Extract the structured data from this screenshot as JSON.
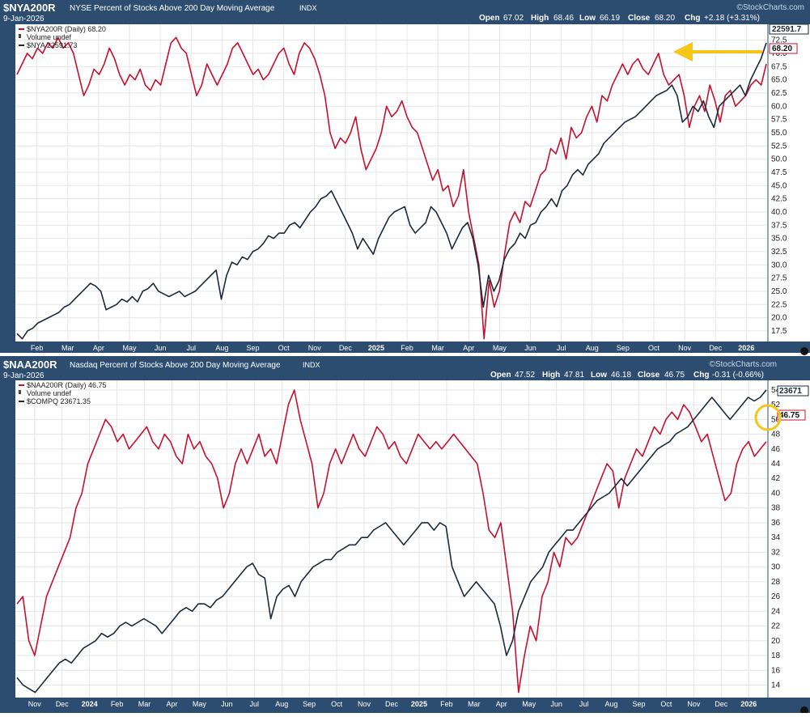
{
  "panels": [
    {
      "symbol": "$NYA200R",
      "description": "NYSE Percent of Stocks Above 200 Day Moving Average",
      "index_tag": "INDX",
      "watermark": "©StockCharts.com",
      "date": "9-Jan-2026",
      "ohlc": {
        "open_label": "Open",
        "open": "67.02",
        "high_label": "High",
        "high": "68.46",
        "low_label": "Low",
        "low": "66.19",
        "close_label": "Close",
        "close": "68.20",
        "chg_label": "Chg",
        "chg": "+2.18 (+3.31%)"
      },
      "legend": [
        {
          "text": "$NYA200R (Daily) 68.20",
          "color": "#c8102e"
        },
        {
          "text": "Volume undef",
          "color": "#444444"
        },
        {
          "text": "$NYA 22591.73",
          "color": "#1c2a3a"
        }
      ],
      "last_badges": {
        "primary": "68.20",
        "secondary": "22591.7"
      },
      "chart_data": {
        "type": "line",
        "ylim": [
          15.5,
          75.5
        ],
        "yticks": [
          "17.5",
          "20.0",
          "22.5",
          "25.0",
          "27.5",
          "30.0",
          "32.5",
          "35.0",
          "37.5",
          "40.0",
          "42.5",
          "45.0",
          "47.5",
          "50.0",
          "52.5",
          "55.0",
          "57.5",
          "60.0",
          "62.5",
          "65.0",
          "67.5",
          "70.0",
          "72.5"
        ],
        "xticks": [
          "Feb",
          "Mar",
          "Apr",
          "May",
          "Jun",
          "Jul",
          "Aug",
          "Sep",
          "Oct",
          "Nov",
          "Dec",
          "2025",
          "Feb",
          "Mar",
          "Apr",
          "May",
          "Jun",
          "Jul",
          "Aug",
          "Sep",
          "Oct",
          "Nov",
          "Dec",
          "2026"
        ],
        "series": [
          {
            "name": "$NYA200R (Daily) 68.20",
            "color": "#c8102e",
            "values": [
              66,
              68,
              70,
              69,
              71,
              70,
              72,
              71,
              73,
              71,
              72,
              70,
              66,
              62,
              64,
              67,
              66,
              68,
              71,
              69,
              66,
              64,
              66,
              65,
              67,
              64,
              63,
              65,
              64,
              68,
              72,
              73,
              71,
              70,
              66,
              62,
              64,
              68,
              66,
              64,
              66,
              68,
              71,
              72,
              70,
              68,
              66,
              67,
              65,
              66,
              68,
              70,
              71,
              68,
              66,
              70,
              72,
              71,
              69,
              66,
              62,
              55,
              52,
              54,
              53,
              55,
              58,
              52,
              48,
              50,
              52,
              55,
              60,
              58,
              59,
              61,
              58,
              56,
              55,
              52,
              49,
              46,
              48,
              44,
              45,
              41,
              43,
              48,
              40,
              35,
              30,
              16,
              27,
              22,
              25,
              32,
              38,
              40,
              38,
              42,
              41,
              44,
              47,
              48,
              52,
              51,
              54,
              50,
              56,
              54,
              55,
              58,
              60,
              57,
              62,
              61,
              64,
              66,
              68,
              66,
              68,
              69,
              67,
              66,
              68,
              70,
              66,
              64,
              65,
              66,
              62,
              56,
              60,
              62,
              59,
              64,
              61,
              57,
              62,
              63,
              60,
              61,
              62,
              64,
              65,
              64,
              68
            ]
          },
          {
            "name": "$NYA 22591.73",
            "color": "#1c2a3a",
            "values": [
              17,
              16,
              17.5,
              18,
              19,
              19.5,
              20,
              20.5,
              21,
              22,
              22.5,
              23.5,
              24.5,
              25.5,
              26.5,
              26,
              25,
              21.5,
              22,
              22.5,
              23.5,
              23,
              24,
              23,
              25,
              25.5,
              26.5,
              25,
              24.5,
              24,
              24.5,
              25,
              24,
              24.5,
              25,
              26,
              27,
              28,
              29,
              23.5,
              28,
              30.5,
              30,
              31.5,
              31,
              32.5,
              33,
              34,
              35.5,
              35,
              36,
              36,
              37.5,
              38,
              37,
              38.5,
              40,
              41,
              42.5,
              43,
              44,
              42,
              40,
              38,
              36,
              33,
              35,
              33.5,
              32,
              35,
              37,
              39,
              40,
              40.5,
              41,
              37.5,
              36,
              37,
              38,
              41,
              40,
              38,
              36,
              33,
              35,
              37,
              38,
              35,
              30,
              22,
              28,
              25,
              27,
              31,
              33,
              34,
              36,
              35,
              37.5,
              38,
              40,
              41,
              42.5,
              41,
              44,
              45,
              47,
              48,
              47,
              49,
              50,
              51,
              53,
              54,
              55,
              56,
              57,
              57.5,
              58,
              59,
              60,
              61,
              62,
              62.5,
              63,
              64,
              62,
              57,
              58,
              60,
              59,
              61,
              58,
              56,
              60,
              61,
              62,
              63,
              64,
              62,
              65,
              67,
              69,
              72
            ]
          }
        ]
      }
    },
    {
      "symbol": "$NAA200R",
      "description": "Nasdaq Percent of Stocks Above 200 Day Moving Average",
      "index_tag": "INDX",
      "watermark": "©StockCharts.com",
      "date": "9-Jan-2026",
      "ohlc": {
        "open_label": "Open",
        "open": "47.52",
        "high_label": "High",
        "high": "47.81",
        "low_label": "Low",
        "low": "46.18",
        "close_label": "Close",
        "close": "46.75",
        "chg_label": "Chg",
        "chg": "-0.31 (-0.66%)"
      },
      "legend": [
        {
          "text": "$NAA200R (Daily) 46.75",
          "color": "#c8102e"
        },
        {
          "text": "Volume undef",
          "color": "#444444"
        },
        {
          "text": "$COMPQ 23671.35",
          "color": "#1c2a3a"
        }
      ],
      "last_badges": {
        "primary": "46.75",
        "secondary": "23671"
      },
      "chart_data": {
        "type": "line",
        "ylim": [
          12.3,
          55.3
        ],
        "yticks": [
          "14",
          "16",
          "18",
          "20",
          "22",
          "24",
          "26",
          "28",
          "30",
          "32",
          "34",
          "36",
          "38",
          "40",
          "42",
          "44",
          "46",
          "48",
          "50",
          "52",
          "54"
        ],
        "xticks": [
          "Nov",
          "Dec",
          "2024",
          "Feb",
          "Mar",
          "Apr",
          "May",
          "Jun",
          "Jul",
          "Aug",
          "Sep",
          "Oct",
          "Nov",
          "Dec",
          "2025",
          "Feb",
          "Mar",
          "Apr",
          "May",
          "Jun",
          "Jul",
          "Aug",
          "Sep",
          "Oct",
          "Nov",
          "Dec",
          "2026"
        ],
        "series": [
          {
            "name": "$NAA200R (Daily) 46.75",
            "color": "#c8102e",
            "values": [
              25,
              26,
              20,
              18,
              22,
              26,
              28,
              30,
              32,
              34,
              38,
              40,
              44,
              46,
              48,
              50,
              49,
              47,
              48,
              46,
              47,
              48,
              49,
              47,
              46,
              48,
              47,
              45,
              44,
              48,
              46,
              47,
              45,
              44,
              42,
              38,
              40,
              44,
              46,
              44,
              46,
              48,
              45,
              46,
              44,
              48,
              52,
              54,
              50,
              47,
              44,
              38,
              40,
              44,
              46,
              44,
              46,
              48,
              46,
              45,
              47,
              49,
              48,
              46,
              47,
              45,
              44,
              46,
              48,
              47,
              46,
              47,
              46,
              47,
              48,
              47,
              46,
              45,
              44,
              40,
              35,
              34,
              36,
              30,
              24,
              13,
              18,
              22,
              20,
              26,
              28,
              32,
              30,
              34,
              33,
              34,
              36,
              38,
              40,
              42,
              44,
              43,
              38,
              42,
              44,
              46,
              45,
              47,
              49,
              48,
              50,
              51,
              50,
              52,
              51,
              49,
              47,
              48,
              45,
              42,
              39,
              40,
              44,
              46,
              47,
              45,
              46,
              47
            ]
          },
          {
            "name": "$COMPQ 23671.35",
            "color": "#1c2a3a",
            "values": [
              15,
              14,
              13.5,
              13,
              14,
              15,
              16,
              17,
              17.5,
              17,
              18,
              19,
              19.5,
              20,
              21,
              20.5,
              21,
              22,
              22.5,
              22,
              22.5,
              23,
              22.5,
              22,
              21,
              22,
              23,
              24,
              24.5,
              24,
              25,
              25,
              24.5,
              25.5,
              26,
              27,
              28,
              29,
              30,
              30.5,
              29,
              28.5,
              23,
              26,
              27,
              27.5,
              26,
              28,
              29,
              30,
              30.5,
              31,
              31,
              32,
              32.5,
              33,
              33,
              34,
              34,
              35,
              35.5,
              36,
              35,
              34,
              33,
              34,
              35,
              36,
              36,
              35,
              36,
              35.5,
              30,
              28,
              26,
              27,
              28,
              27,
              26,
              25,
              22,
              18,
              20,
              24,
              26,
              28,
              29,
              30,
              32,
              33,
              34,
              35,
              35,
              36,
              37,
              38,
              39,
              39.5,
              40,
              41,
              42,
              41,
              42,
              43,
              44,
              45,
              46,
              46.5,
              47,
              48,
              48.5,
              49,
              50,
              51,
              52,
              53,
              52,
              51,
              50,
              51,
              52,
              53,
              52.5,
              53,
              54
            ]
          }
        ]
      }
    }
  ]
}
